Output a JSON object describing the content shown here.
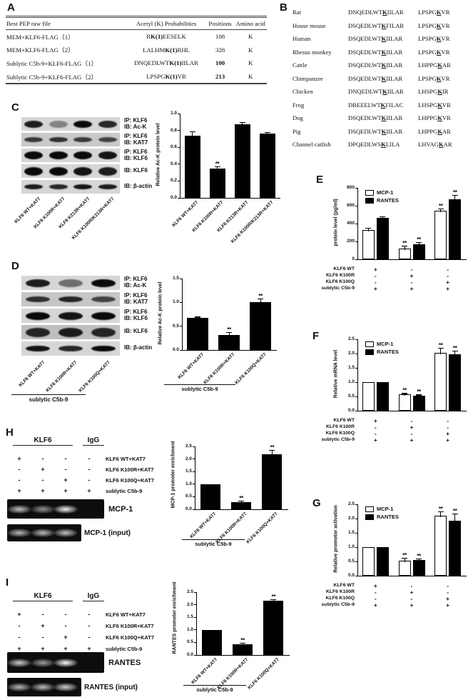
{
  "panelA": {
    "label": "A",
    "headers": [
      "Best PEP raw file",
      "Acetyl (K) Probabilities",
      "Positions",
      "Amino acid"
    ],
    "rows": [
      {
        "file": "MEM+KLF6-FLAG（1）",
        "prob": [
          "R",
          "K(1)",
          "EESELK"
        ],
        "position": "108",
        "position_bold": false,
        "amino_acid": "K"
      },
      {
        "file": "MEM+KLF6-FLAG（2）",
        "prob": [
          "LALHM",
          "K(1)",
          "RHL"
        ],
        "position": "328",
        "position_bold": false,
        "amino_acid": "K"
      },
      {
        "file": "Sublytic C5b-9+KLF6-FLAG（1）",
        "prob": [
          "DNQEDLWT",
          "K(1)",
          "IILAR"
        ],
        "position": "100",
        "position_bold": true,
        "amino_acid": "K"
      },
      {
        "file": "Sublytic C5b-9+KLF6-FLAG（2）",
        "prob": [
          "LPSPG",
          "K(1)",
          "VR"
        ],
        "position": "213",
        "position_bold": true,
        "amino_acid": "K"
      }
    ]
  },
  "panelB": {
    "label": "B",
    "rows": [
      {
        "species": "Rat",
        "seq1": [
          "DNQEDLWT",
          "K",
          "IILAR"
        ],
        "seq2": [
          "LPSPG",
          "K",
          "VR"
        ]
      },
      {
        "species": "House mouse",
        "seq1": [
          "DSQEDLWT",
          "K",
          "FILAR"
        ],
        "seq2": [
          "LPSPG",
          "K",
          "VR"
        ]
      },
      {
        "species": "Human",
        "seq1": [
          "DSQEDLWT",
          "K",
          "IILAR"
        ],
        "seq2": [
          "LPSPG",
          "K",
          "VR"
        ]
      },
      {
        "species": "Rhesus monkey",
        "seq1": [
          "DSQEDLWT",
          "K",
          "IILAR"
        ],
        "seq2": [
          "LPSPG",
          "K",
          "VR"
        ]
      },
      {
        "species": "Cattle",
        "seq1": [
          "DSQEDLWT",
          "K",
          "IILAR"
        ],
        "seq2": [
          "LHPPG",
          "K",
          "AR"
        ]
      },
      {
        "species": "Chimpanzee",
        "seq1": [
          "DSQEDLWT",
          "K",
          "IILAR"
        ],
        "seq2": [
          "LPSPG",
          "K",
          "VR"
        ]
      },
      {
        "species": "Chicken",
        "seq1": [
          "DNQEDLWT",
          "K",
          "IILAR"
        ],
        "seq2": [
          "LHSPG",
          "K",
          "IR"
        ]
      },
      {
        "species": "Frog",
        "seq1": [
          "DREEELWT",
          "K",
          "FILAC"
        ],
        "seq2": [
          "LHSPG",
          "K",
          "VR"
        ]
      },
      {
        "species": "Dog",
        "seq1": [
          "DSQEDLWT",
          "K",
          "IILAR"
        ],
        "seq2": [
          "LHPPG",
          "K",
          "VR"
        ]
      },
      {
        "species": "Pig",
        "seq1": [
          "DSQEDLWT",
          "K",
          "IILAR"
        ],
        "seq2": [
          "LHPPG",
          "K",
          "AR"
        ]
      },
      {
        "species": "Channel catfish",
        "seq1": [
          "DPQEDLWS",
          "K",
          "LILA"
        ],
        "seq2": [
          "LHVAG",
          "K",
          "AR"
        ]
      }
    ]
  },
  "panelC": {
    "label": "C",
    "blot_rows": [
      {
        "ip": "IP: KLF6",
        "ib": "IB: Ac-K",
        "bands": [
          0.9,
          0.4,
          1.0,
          0.85
        ],
        "bg": "#d6d6d6"
      },
      {
        "ip": "IP: KLF6",
        "ib": "IB: KAT7",
        "bands": [
          0.75,
          0.8,
          0.75,
          0.7
        ],
        "bg": "#c9c9c9"
      },
      {
        "ip": "IP: KLF6",
        "ib": "IB: KLF6",
        "bands": [
          1.0,
          1.0,
          1.0,
          0.95
        ],
        "bg": "#d6d6d6"
      },
      {
        "ip": "",
        "ib": "IB: KLF6",
        "bands": [
          1.0,
          1.0,
          0.95,
          0.9
        ],
        "bg": "#d6d6d6"
      },
      {
        "ip": "",
        "ib": "IB: β-actin",
        "bands": [
          0.9,
          0.85,
          0.95,
          0.9
        ],
        "bg": "#d6d6d6"
      }
    ],
    "lanes": [
      "KLF6 WT+KAT7",
      "KLF6 K100R+KAT7",
      "KLF6 K213R+KAT7",
      "KLF6 K100R/K213R+KAT7"
    ]
  },
  "panelD": {
    "label": "D",
    "blot_rows": [
      {
        "ip": "IP: KLF6",
        "ib": "IB: Ac-K",
        "bands": [
          0.9,
          0.5,
          1.0
        ],
        "bg": "#d6d6d6"
      },
      {
        "ip": "IP: KLF6",
        "ib": "IB: KAT7",
        "bands": [
          0.8,
          0.85,
          0.7
        ],
        "bg": "#c6c6c6"
      },
      {
        "ip": "IP: KLF6",
        "ib": "IB: KLF6",
        "bands": [
          1.0,
          0.95,
          1.0
        ],
        "bg": "#d6d6d6"
      },
      {
        "ip": "",
        "ib": "IB: KLF6",
        "bands": [
          0.85,
          0.9,
          0.85
        ],
        "bg": "#bfbfbf"
      },
      {
        "ip": "",
        "ib": "IB: β-actin",
        "bands": [
          0.95,
          0.85,
          1.0
        ],
        "bg": "#d6d6d6"
      }
    ],
    "lanes": [
      "KLF6 WT+KAT7",
      "KLF6 K100R+KAT7",
      "KLF6 K100Q+KAT7"
    ],
    "group_label": "sublytic C5b-9"
  },
  "panelE": {
    "label": "E"
  },
  "panelF": {
    "label": "F"
  },
  "panelG": {
    "label": "G"
  },
  "panelH": {
    "label": "H",
    "header_left": "KLF6",
    "header_right": "IgG",
    "rows": [
      {
        "cells": [
          "+",
          "-",
          "-",
          "-"
        ],
        "label": "KLF6 WT+KAT7"
      },
      {
        "cells": [
          "-",
          "+",
          "-",
          "-"
        ],
        "label": "KLF6 K100R+KAT7"
      },
      {
        "cells": [
          "-",
          "-",
          "+",
          "-"
        ],
        "label": "KLF6 K100Q+KAT7"
      },
      {
        "cells": [
          "+",
          "+",
          "+",
          "+"
        ],
        "label": "sublytic C5b-9"
      }
    ],
    "gel1": {
      "label": "MCP-1",
      "bands": [
        0.75,
        0.55,
        0.95,
        0
      ]
    },
    "gel2": {
      "label": "MCP-1 (input)",
      "bands": [
        0.7,
        0.72,
        0.75
      ]
    }
  },
  "panelI": {
    "label": "I",
    "header_left": "KLF6",
    "header_right": "IgG",
    "rows": [
      {
        "cells": [
          "+",
          "-",
          "-",
          "-"
        ],
        "label": "KLF6 WT+KAT7"
      },
      {
        "cells": [
          "-",
          "+",
          "-",
          "-"
        ],
        "label": "KLF6 K100R+KAT7"
      },
      {
        "cells": [
          "-",
          "-",
          "+",
          "-"
        ],
        "label": "KLF6 K100Q+KAT7"
      },
      {
        "cells": [
          "+",
          "+",
          "+",
          "+"
        ],
        "label": "sublytic C5b-9"
      }
    ],
    "gel1": {
      "label": "RANTES",
      "bands": [
        0.8,
        0.6,
        0.98,
        0
      ]
    },
    "gel2": {
      "label": "RANTES (input)",
      "bands": [
        0.7,
        0.72,
        0.8
      ]
    }
  },
  "chart_data": [
    {
      "id": "chartC",
      "panel": "C",
      "type": "bar",
      "title": "",
      "xlabel": "",
      "ylabel": "Relative Ac-K protein level",
      "ylim": [
        0,
        1.0
      ],
      "yticks": [
        "0.0",
        "0.2",
        "0.4",
        "0.6",
        "0.8",
        "1.0"
      ],
      "grid": false,
      "categories": [
        "KLF6 WT+KAT7",
        "KLF6 K100R+KAT7",
        "KLF6 K213R+KAT7",
        "KLF6 K100R/K213R+KAT7"
      ],
      "values": [
        0.74,
        0.35,
        0.87,
        0.76
      ],
      "errors": [
        0.04,
        0.015,
        0.02,
        0.012
      ],
      "sig": [
        "",
        "**",
        "",
        ""
      ],
      "bar_color": "#000000"
    },
    {
      "id": "chartD",
      "panel": "D",
      "type": "bar",
      "title": "",
      "xlabel": "",
      "ylabel": "Relative Ac-K protein level",
      "ylim": [
        0,
        1.5
      ],
      "yticks": [
        "0.0",
        "0.5",
        "1.0",
        "1.5"
      ],
      "grid": false,
      "categories": [
        "KLF6 WT+KAT7",
        "KLF6 K100R+KAT7",
        "KLF6 K100Q+KAT7"
      ],
      "values": [
        0.67,
        0.32,
        1.01
      ],
      "errors": [
        0.015,
        0.04,
        0.06
      ],
      "sig": [
        "",
        "**",
        "**"
      ],
      "bar_color": "#000000",
      "xnote": "sublytic C5b-9"
    },
    {
      "id": "chartE",
      "panel": "E",
      "type": "grouped_bar",
      "title": "",
      "xlabel": "",
      "ylabel": "protein level (pg/ml)",
      "ylim": [
        0,
        800
      ],
      "yticks": [
        "0",
        "200",
        "400",
        "600",
        "800"
      ],
      "grid": false,
      "legend": [
        "MCP-1",
        "RANTES"
      ],
      "legend_position": "top-left",
      "series": [
        {
          "name": "MCP-1",
          "fill": "#ffffff",
          "values": [
            330,
            120,
            545
          ],
          "errors": [
            12,
            22,
            15
          ],
          "sig": [
            "",
            "**",
            "**"
          ]
        },
        {
          "name": "RANTES",
          "fill": "#000000",
          "values": [
            465,
            170,
            670
          ],
          "errors": [
            8,
            18,
            40
          ],
          "sig": [
            "",
            "**",
            "**"
          ]
        }
      ],
      "matrix": {
        "row_labels": [
          "KLF6 WT",
          "KLF6 K100R",
          "KLF6 K100Q",
          "sublytic C5b-9"
        ],
        "cells": [
          [
            "+",
            "-",
            "-"
          ],
          [
            "-",
            "+",
            "-"
          ],
          [
            "-",
            "-",
            "+"
          ],
          [
            "+",
            "+",
            "+"
          ]
        ]
      }
    },
    {
      "id": "chartF",
      "panel": "F",
      "type": "grouped_bar",
      "title": "",
      "xlabel": "",
      "ylabel": "Relative mRNA level",
      "ylim": [
        0,
        2.5
      ],
      "yticks": [
        "0.0",
        "0.5",
        "1.0",
        "1.5",
        "2.0",
        "2.5"
      ],
      "grid": false,
      "legend": [
        "MCP-1",
        "RANTES"
      ],
      "legend_position": "top-left",
      "series": [
        {
          "name": "MCP-1",
          "fill": "#ffffff",
          "values": [
            1.0,
            0.57,
            2.03
          ],
          "errors": [
            0,
            0.02,
            0.15
          ],
          "sig": [
            "",
            "**",
            "**"
          ]
        },
        {
          "name": "RANTES",
          "fill": "#000000",
          "values": [
            1.0,
            0.52,
            1.97
          ],
          "errors": [
            0,
            0.02,
            0.1
          ],
          "sig": [
            "",
            "**",
            "**"
          ]
        }
      ],
      "matrix": {
        "row_labels": [
          "KLF6 WT",
          "KLF6 K100R",
          "KLF6 K100Q",
          "sublytic C5b-9"
        ],
        "cells": [
          [
            "+",
            "-",
            "-"
          ],
          [
            "-",
            "+",
            "-"
          ],
          [
            "-",
            "-",
            "+"
          ],
          [
            "+",
            "+",
            "+"
          ]
        ]
      }
    },
    {
      "id": "chartG",
      "panel": "G",
      "type": "grouped_bar",
      "title": "",
      "xlabel": "",
      "ylabel": "Relative promotor activation",
      "ylim": [
        0,
        2.5
      ],
      "yticks": [
        "0.0",
        "0.5",
        "1.0",
        "1.5",
        "2.0",
        "2.5"
      ],
      "grid": false,
      "legend": [
        "MCP-1",
        "RANTES"
      ],
      "legend_position": "top-left",
      "series": [
        {
          "name": "MCP-1",
          "fill": "#ffffff",
          "values": [
            1.0,
            0.52,
            2.1
          ],
          "errors": [
            0,
            0.08,
            0.13
          ],
          "sig": [
            "",
            "**",
            "**"
          ]
        },
        {
          "name": "RANTES",
          "fill": "#000000",
          "values": [
            1.0,
            0.54,
            1.93
          ],
          "errors": [
            0,
            0.03,
            0.22
          ],
          "sig": [
            "",
            "**",
            "**"
          ]
        }
      ],
      "matrix": {
        "row_labels": [
          "KLF6 WT",
          "KLF6 K100R",
          "KLF6 K100Q",
          "sublytic C5b-9"
        ],
        "cells": [
          [
            "+",
            "-",
            "-"
          ],
          [
            "-",
            "+",
            "-"
          ],
          [
            "-",
            "-",
            "+"
          ],
          [
            "+",
            "+",
            "+"
          ]
        ]
      }
    },
    {
      "id": "chartH",
      "panel": "H",
      "type": "bar",
      "title": "",
      "xlabel": "",
      "ylabel": "MCP-1 promoter enrichment",
      "ylim": [
        0,
        2.5
      ],
      "yticks": [
        "0.0",
        "0.5",
        "1.0",
        "1.5",
        "2.0",
        "2.5"
      ],
      "grid": false,
      "categories": [
        "KLF6 WT+KAT7",
        "KLF6 K100R+KAT7",
        "KLF6 K100Q+KAT7"
      ],
      "values": [
        1.0,
        0.28,
        2.2
      ],
      "errors": [
        0,
        0.03,
        0.13
      ],
      "sig": [
        "",
        "**",
        "**"
      ],
      "bar_color": "#000000",
      "xnote": "sublytic C5b-9"
    },
    {
      "id": "chartI",
      "panel": "I",
      "type": "bar",
      "title": "",
      "xlabel": "",
      "ylabel": "RANTES promoter enrichment",
      "ylim": [
        0,
        2.5
      ],
      "yticks": [
        "0.0",
        "0.5",
        "1.0",
        "1.5",
        "2.0",
        "2.5"
      ],
      "grid": false,
      "categories": [
        "KLF6 WT+KAT7",
        "KLF6 K100R+KAT7",
        "KLF6 K100Q+KAT7"
      ],
      "values": [
        1.0,
        0.42,
        2.16
      ],
      "errors": [
        0,
        0.04,
        0.04
      ],
      "sig": [
        "",
        "**",
        "**"
      ],
      "bar_color": "#000000",
      "xnote": "sublytic C5b-9"
    }
  ]
}
